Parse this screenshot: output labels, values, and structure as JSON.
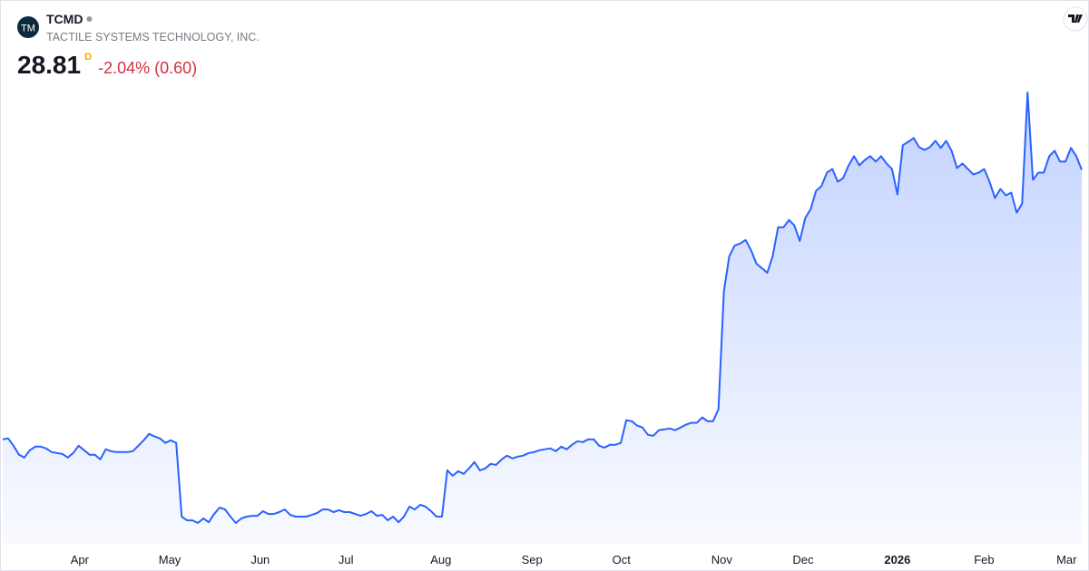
{
  "header": {
    "logo": "TM",
    "symbol": "TCMD",
    "company": "TACTILE SYSTEMS TECHNOLOGY, INC.",
    "price": "28.81",
    "interval": "D",
    "change": "-2.04% (0.60)"
  },
  "chart_data": {
    "type": "area",
    "categories": [
      null,
      null,
      null,
      null,
      null,
      null,
      null,
      null,
      null,
      null,
      null,
      null,
      null,
      null,
      null,
      null,
      null,
      null,
      null,
      null,
      null,
      null,
      null,
      null,
      null,
      null,
      null,
      null,
      null,
      null,
      null,
      null,
      null,
      null,
      null,
      null,
      null,
      null,
      null,
      null,
      null,
      null,
      null,
      null,
      null,
      null,
      null,
      null,
      null,
      null,
      null,
      null,
      null,
      null,
      null,
      null,
      null,
      null,
      null,
      null,
      null,
      null,
      null,
      null,
      null,
      null,
      null,
      null,
      null,
      null,
      null,
      null,
      null,
      null,
      null,
      null,
      null,
      null,
      null,
      null,
      null,
      null,
      null,
      null,
      null,
      null,
      null,
      null,
      null,
      null,
      null,
      null,
      null,
      null,
      null,
      null,
      null,
      null,
      null,
      null,
      null,
      null,
      null,
      null,
      null,
      null,
      null,
      null,
      null,
      null,
      null,
      null,
      null,
      null,
      null,
      null,
      null,
      null,
      null,
      null,
      null,
      null,
      null,
      null,
      null,
      null,
      null,
      null,
      null,
      null,
      null,
      null,
      null,
      null,
      null,
      null,
      null,
      null,
      null,
      null,
      null,
      null,
      null,
      null,
      null,
      null,
      null,
      null,
      null,
      null,
      null,
      null,
      null,
      null,
      null,
      null,
      null,
      null,
      null,
      null,
      null,
      null,
      null,
      null,
      null,
      null,
      null,
      null,
      null,
      null,
      null,
      null,
      null,
      null,
      null,
      null,
      null,
      null,
      null,
      null,
      null,
      null,
      null,
      null,
      null,
      null,
      null,
      null,
      null,
      null,
      null,
      null,
      null,
      null,
      null,
      null,
      null,
      null,
      null,
      null
    ],
    "series": [
      {
        "color": "#2962ff",
        "values": [
          14.44,
          14.49,
          14.1,
          13.62,
          13.47,
          13.86,
          14.05,
          14.05,
          13.96,
          13.76,
          13.71,
          13.66,
          13.47,
          13.71,
          14.1,
          13.86,
          13.62,
          13.62,
          13.37,
          13.91,
          13.81,
          13.76,
          13.76,
          13.76,
          13.81,
          14.1,
          14.39,
          14.73,
          14.59,
          14.49,
          14.25,
          14.39,
          14.25,
          10.32,
          10.12,
          10.12,
          9.98,
          10.22,
          10.02,
          10.46,
          10.8,
          10.7,
          10.32,
          9.98,
          10.22,
          10.32,
          10.36,
          10.36,
          10.61,
          10.46,
          10.46,
          10.56,
          10.7,
          10.41,
          10.32,
          10.32,
          10.32,
          10.41,
          10.51,
          10.7,
          10.7,
          10.56,
          10.66,
          10.56,
          10.56,
          10.46,
          10.36,
          10.46,
          10.61,
          10.36,
          10.41,
          10.12,
          10.32,
          10.02,
          10.32,
          10.85,
          10.7,
          10.95,
          10.85,
          10.61,
          10.32,
          10.32,
          12.79,
          12.5,
          12.74,
          12.6,
          12.89,
          13.23,
          12.79,
          12.89,
          13.13,
          13.08,
          13.37,
          13.57,
          13.42,
          13.52,
          13.57,
          13.71,
          13.76,
          13.86,
          13.91,
          13.96,
          13.81,
          14.05,
          13.91,
          14.15,
          14.34,
          14.29,
          14.44,
          14.44,
          14.1,
          14.0,
          14.15,
          14.15,
          14.25,
          15.46,
          15.41,
          15.17,
          15.07,
          14.68,
          14.63,
          14.93,
          14.97,
          15.02,
          14.93,
          15.07,
          15.22,
          15.32,
          15.32,
          15.61,
          15.41,
          15.41,
          16.04,
          22.35,
          24.2,
          24.78,
          24.88,
          25.07,
          24.54,
          23.81,
          23.57,
          23.32,
          24.2,
          25.75,
          25.75,
          26.14,
          25.85,
          25.02,
          26.24,
          26.72,
          27.69,
          27.94,
          28.66,
          28.86,
          28.18,
          28.37,
          29.05,
          29.54,
          29.05,
          29.34,
          29.54,
          29.25,
          29.54,
          29.15,
          28.86,
          27.5,
          30.12,
          30.31,
          30.51,
          30.02,
          29.88,
          30.02,
          30.36,
          29.98,
          30.36,
          29.83,
          28.91,
          29.15,
          28.86,
          28.57,
          28.66,
          28.86,
          28.18,
          27.31,
          27.79,
          27.45,
          27.6,
          26.53,
          27.01,
          32.94,
          28.28,
          28.66,
          28.66,
          29.54,
          29.83,
          29.25,
          29.25,
          29.98,
          29.54,
          28.81
        ]
      }
    ],
    "xticks": [
      {
        "value": 14.2,
        "label": "Apr"
      },
      {
        "value": 30.8,
        "label": "May"
      },
      {
        "value": 47.5,
        "label": "Jun"
      },
      {
        "value": 63.3,
        "label": "Jul"
      },
      {
        "value": 80.8,
        "label": "Aug"
      },
      {
        "value": 97.6,
        "label": "Sep"
      },
      {
        "value": 114.1,
        "label": "Oct"
      },
      {
        "value": 132.6,
        "label": "Nov"
      },
      {
        "value": 147.6,
        "label": "Dec"
      },
      {
        "value": 165.0,
        "label": "2026"
      },
      {
        "value": 181.0,
        "label": "Feb"
      },
      {
        "value": 196.2,
        "label": "Mar"
      }
    ]
  }
}
